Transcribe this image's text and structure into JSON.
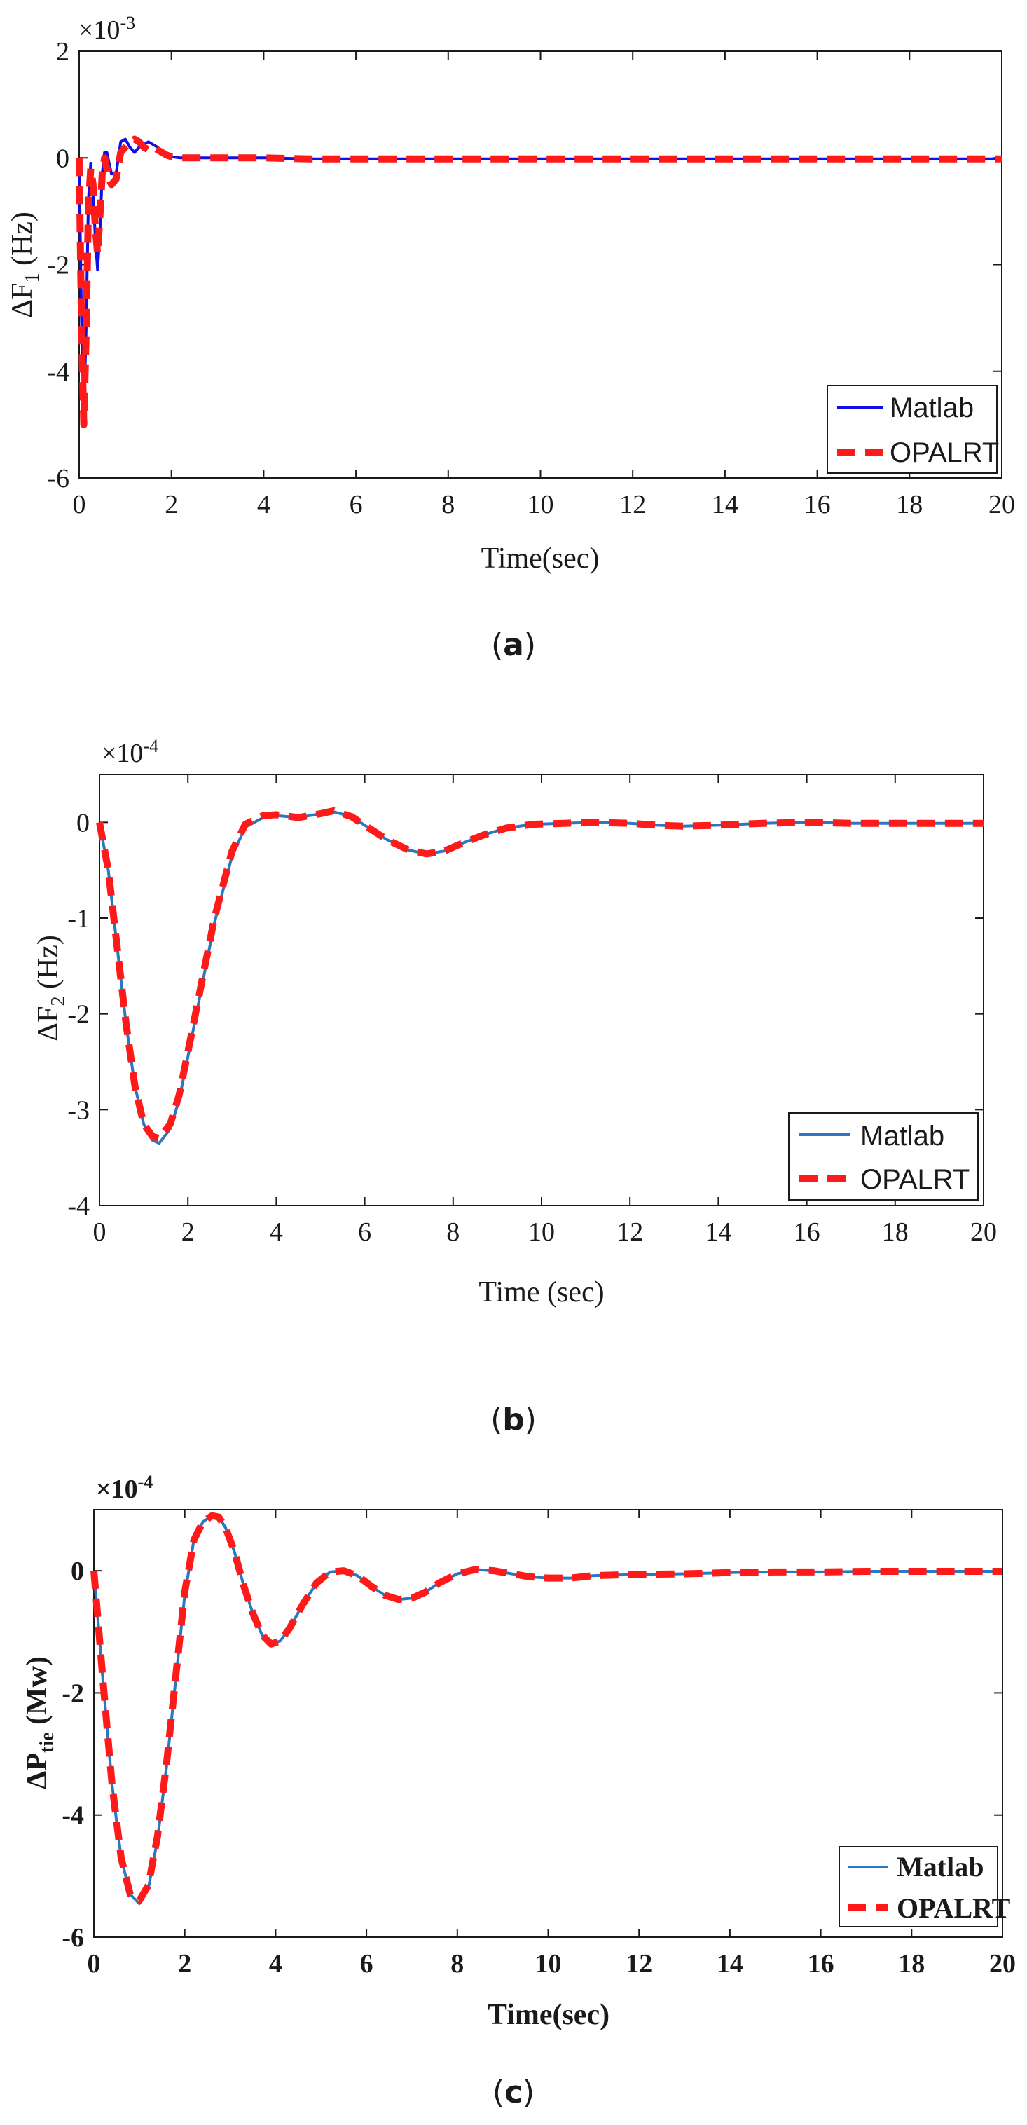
{
  "figure": {
    "charts": [
      {
        "panel_label": "(a)",
        "panel_letter": "a",
        "exponent_base": "×10",
        "exponent_power": "-3",
        "ylabel_main": "ΔF",
        "ylabel_sub": "1",
        "ylabel_tail": " (Hz)"
      },
      {
        "panel_label": "(b)",
        "panel_letter": "b",
        "exponent_base": "×10",
        "exponent_power": "-4",
        "ylabel_main": "ΔF",
        "ylabel_sub": "2",
        "ylabel_tail": " (Hz)"
      },
      {
        "panel_label": "(c)",
        "panel_letter": "c",
        "exponent_base": "×10",
        "exponent_power": "-4",
        "ylabel_main": "ΔP",
        "ylabel_sub": "tie",
        "ylabel_tail": " (Mw)"
      }
    ]
  },
  "colors": {
    "matlab_a": "#1010e6",
    "matlab_bc": "#2b78c2",
    "opalrt": "#ff1a1a",
    "axis": "#1a1a1a"
  },
  "chart_data": [
    {
      "type": "line",
      "title": "",
      "xlabel": "Time(sec)",
      "ylabel": "ΔF1 (Hz)",
      "x_ticks": [
        0,
        2,
        4,
        6,
        8,
        10,
        12,
        14,
        16,
        18,
        20
      ],
      "y_ticks": [
        2,
        0,
        -2,
        -4,
        -6
      ],
      "xlim": [
        0,
        20
      ],
      "ylim": [
        -6,
        2
      ],
      "y_scale_note": "×10^-3",
      "legend": [
        "Matlab",
        "OPALRT"
      ],
      "legend_position": "bottom-right",
      "series": [
        {
          "name": "Matlab",
          "x": [
            0,
            0.05,
            0.1,
            0.15,
            0.2,
            0.25,
            0.3,
            0.35,
            0.4,
            0.45,
            0.5,
            0.55,
            0.6,
            0.65,
            0.7,
            0.8,
            0.9,
            1.0,
            1.1,
            1.2,
            1.3,
            1.4,
            1.5,
            1.6,
            1.7,
            1.8,
            1.9,
            2.0,
            2.2,
            2.5,
            3,
            4,
            5,
            6,
            8,
            10,
            12,
            14,
            16,
            18,
            20
          ],
          "y": [
            0,
            -3.0,
            -4.9,
            -3.2,
            -0.8,
            -0.1,
            -0.6,
            -1.5,
            -2.1,
            -1.4,
            -0.3,
            0.1,
            0.1,
            -0.1,
            -0.3,
            -0.3,
            0.3,
            0.35,
            0.2,
            0.1,
            0.2,
            0.25,
            0.3,
            0.25,
            0.2,
            0.1,
            0.05,
            0.02,
            0.0,
            0.0,
            0.0,
            0.0,
            -0.02,
            -0.02,
            -0.02,
            -0.02,
            -0.02,
            -0.02,
            -0.02,
            -0.02,
            -0.02
          ]
        },
        {
          "name": "OPALRT",
          "x": [
            0,
            0.05,
            0.1,
            0.15,
            0.2,
            0.25,
            0.3,
            0.35,
            0.4,
            0.45,
            0.5,
            0.55,
            0.6,
            0.65,
            0.7,
            0.8,
            0.9,
            1.0,
            1.1,
            1.2,
            1.3,
            1.4,
            1.5,
            1.6,
            1.7,
            1.8,
            1.9,
            2.0,
            2.2,
            2.5,
            3,
            4,
            5,
            6,
            8,
            10,
            12,
            14,
            16,
            18,
            20
          ],
          "y": [
            0,
            -3.1,
            -5.0,
            -3.3,
            -0.9,
            -0.2,
            -0.5,
            -1.3,
            -1.8,
            -1.1,
            -0.3,
            0.0,
            -0.2,
            -0.4,
            -0.5,
            -0.4,
            0.1,
            0.2,
            0.3,
            0.35,
            0.3,
            0.2,
            0.15,
            0.2,
            0.15,
            0.1,
            0.05,
            0.02,
            0.0,
            0.0,
            0.0,
            0.0,
            -0.02,
            -0.02,
            -0.02,
            -0.02,
            -0.02,
            -0.02,
            -0.02,
            -0.02,
            -0.02
          ]
        }
      ]
    },
    {
      "type": "line",
      "title": "",
      "xlabel": "Time (sec)",
      "ylabel": "ΔF2 (Hz)",
      "x_ticks": [
        0,
        2,
        4,
        6,
        8,
        10,
        12,
        14,
        16,
        18,
        20
      ],
      "y_ticks": [
        0,
        -1,
        -2,
        -3,
        -4
      ],
      "xlim": [
        0,
        20
      ],
      "ylim": [
        -4,
        0.5
      ],
      "y_scale_note": "×10^-4",
      "legend": [
        "Matlab",
        "OPALRT"
      ],
      "legend_position": "bottom-right",
      "series": [
        {
          "name": "Matlab",
          "x": [
            0,
            0.2,
            0.4,
            0.6,
            0.8,
            1.0,
            1.2,
            1.35,
            1.6,
            1.8,
            2.0,
            2.3,
            2.6,
            3.0,
            3.3,
            3.7,
            4.0,
            4.5,
            5.0,
            5.3,
            5.7,
            6.0,
            6.5,
            7.0,
            7.4,
            7.8,
            8.2,
            8.7,
            9.2,
            9.8,
            10.5,
            11.2,
            12,
            12.6,
            13.2,
            14,
            15,
            16,
            17,
            18,
            19,
            20
          ],
          "y": [
            0,
            -0.5,
            -1.3,
            -2.1,
            -2.75,
            -3.15,
            -3.32,
            -3.35,
            -3.2,
            -2.9,
            -2.45,
            -1.75,
            -1.05,
            -0.35,
            -0.05,
            0.05,
            0.07,
            0.05,
            0.09,
            0.11,
            0.06,
            -0.03,
            -0.18,
            -0.29,
            -0.33,
            -0.3,
            -0.22,
            -0.13,
            -0.06,
            -0.02,
            -0.01,
            -0.0,
            -0.01,
            -0.03,
            -0.04,
            -0.03,
            -0.01,
            0.0,
            -0.01,
            -0.01,
            -0.01,
            -0.01
          ]
        },
        {
          "name": "OPALRT",
          "x": [
            0,
            0.2,
            0.4,
            0.6,
            0.8,
            1.0,
            1.2,
            1.35,
            1.6,
            1.8,
            2.0,
            2.3,
            2.6,
            3.0,
            3.3,
            3.7,
            4.0,
            4.5,
            5.0,
            5.3,
            5.7,
            6.0,
            6.5,
            7.0,
            7.4,
            7.8,
            8.2,
            8.7,
            9.2,
            9.8,
            10.5,
            11.2,
            12,
            12.6,
            13.2,
            14,
            15,
            16,
            17,
            18,
            19,
            20
          ],
          "y": [
            0,
            -0.5,
            -1.3,
            -2.1,
            -2.75,
            -3.15,
            -3.28,
            -3.3,
            -3.15,
            -2.85,
            -2.4,
            -1.7,
            -1.0,
            -0.3,
            -0.02,
            0.07,
            0.08,
            0.05,
            0.09,
            0.12,
            0.06,
            -0.03,
            -0.18,
            -0.29,
            -0.33,
            -0.3,
            -0.22,
            -0.13,
            -0.06,
            -0.02,
            -0.01,
            0.0,
            -0.01,
            -0.03,
            -0.04,
            -0.03,
            -0.01,
            0.0,
            -0.01,
            -0.01,
            -0.01,
            -0.01
          ]
        }
      ]
    },
    {
      "type": "line",
      "title": "",
      "xlabel": "Time(sec)",
      "ylabel": "ΔPtie (Mw)",
      "x_ticks": [
        0,
        2,
        4,
        6,
        8,
        10,
        12,
        14,
        16,
        18,
        20
      ],
      "y_ticks": [
        0,
        -2,
        -4,
        -6
      ],
      "xlim": [
        0,
        20
      ],
      "ylim": [
        -6,
        1
      ],
      "y_scale_note": "×10^-4",
      "legend": [
        "Matlab",
        "OPALRT"
      ],
      "legend_position": "bottom-right",
      "series": [
        {
          "name": "Matlab",
          "x": [
            0,
            0.2,
            0.4,
            0.6,
            0.8,
            1.0,
            1.2,
            1.4,
            1.6,
            1.8,
            2.0,
            2.2,
            2.4,
            2.6,
            2.75,
            2.9,
            3.1,
            3.3,
            3.5,
            3.7,
            3.9,
            4.1,
            4.3,
            4.6,
            4.9,
            5.2,
            5.5,
            5.8,
            6.1,
            6.4,
            6.7,
            7.0,
            7.3,
            7.6,
            8.0,
            8.4,
            8.8,
            9.2,
            9.6,
            10.0,
            10.5,
            11,
            12,
            13,
            14,
            15,
            16,
            17,
            18,
            19,
            20
          ],
          "y": [
            0,
            -1.8,
            -3.5,
            -4.7,
            -5.3,
            -5.45,
            -5.2,
            -4.4,
            -3.2,
            -1.8,
            -0.4,
            0.5,
            0.8,
            0.9,
            0.88,
            0.7,
            0.3,
            -0.25,
            -0.7,
            -1.05,
            -1.2,
            -1.15,
            -0.95,
            -0.55,
            -0.2,
            -0.02,
            0.0,
            -0.08,
            -0.25,
            -0.4,
            -0.47,
            -0.45,
            -0.35,
            -0.2,
            -0.05,
            0.02,
            0.0,
            -0.05,
            -0.1,
            -0.12,
            -0.12,
            -0.08,
            -0.06,
            -0.05,
            -0.03,
            -0.02,
            -0.02,
            -0.01,
            -0.01,
            -0.01,
            -0.01
          ]
        },
        {
          "name": "OPALRT",
          "x": [
            0,
            0.2,
            0.4,
            0.6,
            0.8,
            1.0,
            1.2,
            1.4,
            1.6,
            1.8,
            2.0,
            2.2,
            2.4,
            2.6,
            2.75,
            2.9,
            3.1,
            3.3,
            3.5,
            3.7,
            3.9,
            4.1,
            4.3,
            4.6,
            4.9,
            5.2,
            5.5,
            5.8,
            6.1,
            6.4,
            6.7,
            7.0,
            7.3,
            7.6,
            8.0,
            8.4,
            8.8,
            9.2,
            9.6,
            10.0,
            10.5,
            11,
            12,
            13,
            14,
            15,
            16,
            17,
            18,
            19,
            20
          ],
          "y": [
            0,
            -1.8,
            -3.5,
            -4.7,
            -5.3,
            -5.4,
            -5.15,
            -4.35,
            -3.15,
            -1.75,
            -0.35,
            0.5,
            0.8,
            0.9,
            0.88,
            0.7,
            0.3,
            -0.25,
            -0.7,
            -1.05,
            -1.2,
            -1.15,
            -0.95,
            -0.55,
            -0.2,
            -0.02,
            0.0,
            -0.08,
            -0.25,
            -0.4,
            -0.47,
            -0.45,
            -0.35,
            -0.2,
            -0.05,
            0.02,
            0.0,
            -0.05,
            -0.1,
            -0.12,
            -0.12,
            -0.08,
            -0.06,
            -0.05,
            -0.03,
            -0.02,
            -0.02,
            -0.01,
            -0.01,
            -0.01,
            -0.01
          ]
        }
      ]
    }
  ]
}
